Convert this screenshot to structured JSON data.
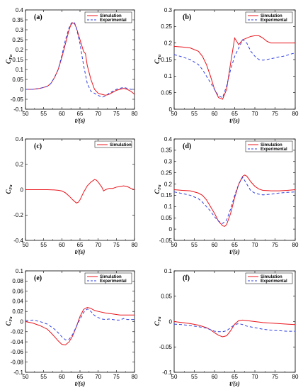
{
  "figure": {
    "xlabel": "t/(s)",
    "ylabel": "C",
    "ylabel_sub": "Fa",
    "legend_sim": "Simulation",
    "legend_exp": "Experimental",
    "colors": {
      "simulation": "#e8141c",
      "experimental": "#3040e0"
    }
  },
  "chart_data": [
    {
      "type": "line",
      "label": "(a)",
      "xlim": [
        50,
        80
      ],
      "ylim": [
        -0.1,
        0.4
      ],
      "xticks": [
        50,
        55,
        60,
        65,
        70,
        75,
        80
      ],
      "yticks": [
        -0.1,
        -0.05,
        0,
        0.05,
        0.1,
        0.15,
        0.2,
        0.25,
        0.3,
        0.35,
        0.4
      ],
      "ytick_labels": [
        "-0.1",
        "-0.05",
        "0",
        "0.05",
        "0.1",
        "0.15",
        "0.2",
        "0.25",
        "0.3",
        "0.35",
        "0.4"
      ],
      "legend": [
        "Simulation",
        "Experimental"
      ],
      "series": [
        {
          "name": "Simulation",
          "x": [
            50,
            52,
            54,
            56,
            57,
            58,
            59,
            60,
            61,
            62,
            62.5,
            63,
            63.5,
            64,
            65,
            66,
            66.5,
            67,
            68,
            69,
            70,
            71,
            72,
            73,
            74,
            75,
            76,
            77,
            78,
            79,
            80
          ],
          "y": [
            0,
            0,
            0.005,
            0.015,
            0.03,
            0.06,
            0.1,
            0.16,
            0.23,
            0.3,
            0.325,
            0.335,
            0.33,
            0.31,
            0.25,
            0.19,
            0.18,
            0.12,
            0.05,
            0.0,
            -0.02,
            -0.025,
            -0.03,
            -0.025,
            -0.015,
            -0.005,
            0.0,
            0.005,
            0.0,
            -0.01,
            -0.025
          ]
        },
        {
          "name": "Experimental",
          "x": [
            50,
            52,
            54,
            56,
            57,
            58,
            59,
            60,
            61,
            62,
            62.5,
            63,
            63.5,
            64,
            65,
            66,
            67,
            68,
            69,
            70,
            71,
            72,
            73,
            74,
            75,
            76,
            77,
            78,
            79,
            80
          ],
          "y": [
            0,
            0,
            0.005,
            0.015,
            0.03,
            0.06,
            0.1,
            0.17,
            0.25,
            0.31,
            0.33,
            0.34,
            0.335,
            0.31,
            0.23,
            0.12,
            0.03,
            -0.01,
            -0.02,
            -0.03,
            -0.04,
            -0.035,
            -0.02,
            -0.01,
            0.0,
            0.005,
            0.01,
            0.005,
            0.0,
            0.0
          ]
        }
      ]
    },
    {
      "type": "line",
      "label": "(b)",
      "xlim": [
        50,
        80
      ],
      "ylim": [
        0,
        0.3
      ],
      "xticks": [
        50,
        55,
        60,
        65,
        70,
        75,
        80
      ],
      "yticks": [
        0,
        0.05,
        0.1,
        0.15,
        0.2,
        0.25,
        0.3
      ],
      "ytick_labels": [
        "0",
        "0.05",
        "0.1",
        "0.15",
        "0.2",
        "0.25",
        "0.3"
      ],
      "legend": [
        "Simulation",
        "Experimental"
      ],
      "series": [
        {
          "name": "Simulation",
          "x": [
            50,
            52,
            54,
            56,
            57,
            58,
            59,
            60,
            61,
            62,
            63,
            64,
            65,
            66,
            67,
            68,
            69,
            70,
            71,
            72,
            73,
            74,
            75,
            76,
            77,
            78,
            79,
            80
          ],
          "y": [
            0.19,
            0.188,
            0.185,
            0.175,
            0.16,
            0.135,
            0.1,
            0.06,
            0.035,
            0.03,
            0.06,
            0.14,
            0.215,
            0.195,
            0.21,
            0.215,
            0.22,
            0.222,
            0.222,
            0.215,
            0.205,
            0.2,
            0.2,
            0.2,
            0.2,
            0.2,
            0.2,
            0.2
          ]
        },
        {
          "name": "Experimental",
          "x": [
            50,
            52,
            54,
            56,
            57,
            58,
            59,
            60,
            61,
            62,
            63,
            64,
            65,
            66,
            67,
            68,
            69,
            70,
            71,
            72,
            73,
            74,
            75,
            76,
            77,
            78,
            79,
            80
          ],
          "y": [
            0.165,
            0.158,
            0.15,
            0.135,
            0.12,
            0.1,
            0.08,
            0.06,
            0.04,
            0.035,
            0.07,
            0.12,
            0.16,
            0.185,
            0.21,
            0.2,
            0.175,
            0.16,
            0.15,
            0.148,
            0.15,
            0.153,
            0.155,
            0.158,
            0.16,
            0.163,
            0.167,
            0.17
          ]
        }
      ]
    },
    {
      "type": "line",
      "label": "(c)",
      "xlim": [
        50,
        80
      ],
      "ylim": [
        -0.4,
        0.4
      ],
      "xticks": [
        50,
        55,
        60,
        65,
        70,
        75,
        80
      ],
      "yticks": [
        -0.4,
        -0.2,
        0,
        0.2,
        0.4
      ],
      "ytick_labels": [
        "-0.4",
        "-0.2",
        "0",
        "0.2",
        "0.4"
      ],
      "legend": [
        "Simulation"
      ],
      "series": [
        {
          "name": "Simulation",
          "x": [
            50,
            52,
            54,
            56,
            58,
            59,
            60,
            61,
            62,
            63,
            64,
            64.5,
            65,
            66,
            67,
            68,
            69,
            69.5,
            70,
            71,
            71.5,
            72,
            73,
            74,
            75,
            76,
            77,
            78,
            79,
            80
          ],
          "y": [
            0,
            0,
            0,
            0,
            -0.002,
            -0.005,
            -0.01,
            -0.025,
            -0.05,
            -0.08,
            -0.105,
            -0.1,
            -0.08,
            -0.02,
            0.03,
            0.06,
            0.08,
            0.075,
            0.06,
            0.02,
            -0.01,
            0.0,
            0.01,
            0.01,
            0.02,
            0.025,
            0.03,
            0.025,
            0.01,
            0.0
          ]
        }
      ]
    },
    {
      "type": "line",
      "label": "(d)",
      "xlim": [
        50,
        80
      ],
      "ylim": [
        -0.05,
        0.4
      ],
      "xticks": [
        50,
        55,
        60,
        65,
        70,
        75,
        80
      ],
      "yticks": [
        -0.05,
        0,
        0.05,
        0.1,
        0.15,
        0.2,
        0.25,
        0.3,
        0.35,
        0.4
      ],
      "ytick_labels": [
        "-0.05",
        "0",
        "0.05",
        "0.1",
        "0.15",
        "0.2",
        "0.25",
        "0.3",
        "0.35",
        "0.4"
      ],
      "legend": [
        "Simulation",
        "Experimental"
      ],
      "series": [
        {
          "name": "Simulation",
          "x": [
            50,
            52,
            54,
            56,
            57,
            58,
            59,
            60,
            61,
            62,
            62.5,
            63,
            64,
            65,
            66,
            67,
            67.5,
            68,
            69,
            70,
            71,
            72,
            74,
            76,
            78,
            80
          ],
          "y": [
            0.175,
            0.172,
            0.17,
            0.16,
            0.15,
            0.13,
            0.1,
            0.07,
            0.035,
            0.015,
            0.012,
            0.02,
            0.07,
            0.14,
            0.2,
            0.235,
            0.24,
            0.235,
            0.21,
            0.19,
            0.178,
            0.172,
            0.17,
            0.17,
            0.172,
            0.175
          ]
        },
        {
          "name": "Experimental",
          "x": [
            50,
            52,
            54,
            56,
            57,
            58,
            59,
            60,
            61,
            62,
            63,
            64,
            65,
            66,
            67,
            68,
            69,
            70,
            71,
            72,
            74,
            76,
            78,
            80
          ],
          "y": [
            0.165,
            0.158,
            0.15,
            0.135,
            0.12,
            0.1,
            0.08,
            0.055,
            0.035,
            0.025,
            0.04,
            0.09,
            0.15,
            0.2,
            0.23,
            0.2,
            0.17,
            0.16,
            0.155,
            0.152,
            0.155,
            0.16,
            0.163,
            0.165
          ]
        }
      ]
    },
    {
      "type": "line",
      "label": "(e)",
      "xlim": [
        50,
        80
      ],
      "ylim": [
        -0.1,
        0.1
      ],
      "xticks": [
        50,
        55,
        60,
        65,
        70,
        75,
        80
      ],
      "yticks": [
        -0.1,
        -0.08,
        -0.06,
        -0.04,
        -0.02,
        0,
        0.02,
        0.04,
        0.06,
        0.08,
        0.1
      ],
      "ytick_labels": [
        "-0.1",
        "-0.08",
        "-0.06",
        "-0.04",
        "-0.02",
        "0",
        "0.02",
        "0.04",
        "0.06",
        "0.08",
        "0.1"
      ],
      "legend": [
        "Simulation",
        "Experimental"
      ],
      "series": [
        {
          "name": "Simulation",
          "x": [
            50,
            52,
            54,
            56,
            57,
            58,
            59,
            60,
            61,
            62,
            63,
            64,
            65,
            66,
            67,
            68,
            69,
            70,
            72,
            74,
            76,
            78,
            80
          ],
          "y": [
            0,
            -0.003,
            -0.008,
            -0.015,
            -0.022,
            -0.03,
            -0.038,
            -0.045,
            -0.046,
            -0.04,
            -0.028,
            -0.01,
            0.01,
            0.024,
            0.028,
            0.026,
            0.022,
            0.02,
            0.017,
            0.015,
            0.013,
            0.013,
            0.013
          ]
        },
        {
          "name": "Experimental",
          "x": [
            50,
            52,
            54,
            56,
            57,
            58,
            59,
            60,
            61,
            62,
            63,
            64,
            65,
            66,
            67,
            68,
            69,
            70,
            71,
            72,
            73,
            74,
            75,
            76,
            77,
            78,
            80
          ],
          "y": [
            0.002,
            0.003,
            0.0,
            -0.005,
            -0.01,
            -0.015,
            -0.022,
            -0.03,
            -0.036,
            -0.035,
            -0.025,
            -0.01,
            0.005,
            0.018,
            0.025,
            0.02,
            0.012,
            0.008,
            0.005,
            0.004,
            0.005,
            0.004,
            0.003,
            0.003,
            0.006,
            0.004,
            0.004
          ]
        }
      ]
    },
    {
      "type": "line",
      "label": "(f)",
      "xlim": [
        50,
        80
      ],
      "ylim": [
        -0.1,
        0.1
      ],
      "xticks": [
        50,
        55,
        60,
        65,
        70,
        75,
        80
      ],
      "yticks": [
        -0.1,
        -0.05,
        0,
        0.05,
        0.1
      ],
      "ytick_labels": [
        "-0.1",
        "-0.05",
        "0",
        "0.05",
        "0.1"
      ],
      "legend": [
        "Simulation",
        "Experimental"
      ],
      "series": [
        {
          "name": "Simulation",
          "x": [
            50,
            52,
            54,
            56,
            58,
            59,
            60,
            61,
            62,
            63,
            64,
            65,
            66,
            67,
            68,
            70,
            72,
            74,
            76,
            78,
            80
          ],
          "y": [
            0,
            -0.002,
            -0.004,
            -0.007,
            -0.012,
            -0.016,
            -0.022,
            -0.027,
            -0.03,
            -0.028,
            -0.018,
            -0.005,
            0.002,
            0.003,
            0.002,
            0.0,
            -0.002,
            -0.003,
            -0.004,
            -0.005,
            -0.006
          ]
        },
        {
          "name": "Experimental",
          "x": [
            50,
            52,
            54,
            56,
            58,
            59,
            60,
            61,
            62,
            63,
            64,
            65,
            66,
            67,
            68,
            70,
            72,
            74,
            76,
            78,
            80
          ],
          "y": [
            -0.005,
            -0.006,
            -0.008,
            -0.01,
            -0.013,
            -0.016,
            -0.019,
            -0.02,
            -0.02,
            -0.018,
            -0.012,
            -0.006,
            -0.004,
            -0.006,
            -0.009,
            -0.012,
            -0.015,
            -0.017,
            -0.018,
            -0.019,
            -0.019
          ]
        }
      ]
    }
  ]
}
